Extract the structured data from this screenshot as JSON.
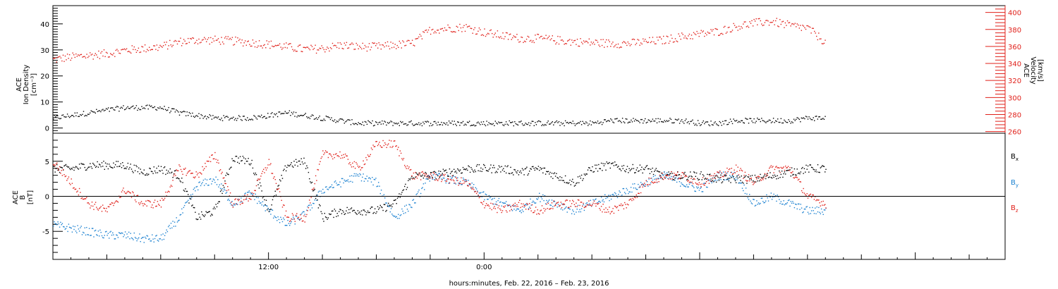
{
  "chart_data": [
    {
      "type": "scatter",
      "panel": "top",
      "ylabel_left": [
        "ACE",
        "Ion Density",
        "[cm⁻³]"
      ],
      "ylabel_right": [
        "ACE",
        "Velocity",
        "[km/s]"
      ],
      "ylim_left": [
        -2,
        47
      ],
      "ylim_right": [
        258,
        408
      ],
      "left_ticks": [
        0,
        10,
        20,
        30,
        40
      ],
      "right_ticks": [
        260,
        280,
        300,
        320,
        340,
        360,
        380,
        400
      ],
      "colors": {
        "density": "#000000",
        "velocity": "#e0201a"
      },
      "series": [
        {
          "name": "Ion Density",
          "axis": "left",
          "x_hours": [
            0,
            1,
            2,
            3,
            4,
            5,
            6,
            7,
            8,
            9,
            10,
            11,
            12,
            13,
            14,
            15,
            16,
            17,
            18,
            19,
            20,
            21,
            22,
            23,
            24,
            25,
            26,
            27,
            28,
            29,
            30,
            31,
            32,
            33,
            34,
            35,
            36,
            37,
            38,
            39,
            40,
            41,
            42,
            43
          ],
          "values": [
            4,
            5,
            6,
            7,
            8,
            8,
            8,
            6,
            5,
            4,
            4,
            4,
            5,
            6,
            5,
            4,
            3,
            2,
            2,
            2,
            2,
            2,
            2,
            2,
            2,
            2,
            2,
            2,
            2,
            2,
            2,
            3,
            3,
            3,
            3,
            3,
            2,
            2,
            3,
            3,
            3,
            3,
            4,
            4
          ]
        },
        {
          "name": "Velocity",
          "axis": "right",
          "x_hours": [
            0,
            1,
            2,
            3,
            4,
            5,
            6,
            7,
            8,
            9,
            10,
            11,
            12,
            13,
            14,
            15,
            16,
            17,
            18,
            19,
            20,
            21,
            22,
            23,
            24,
            25,
            26,
            27,
            28,
            29,
            30,
            31,
            32,
            33,
            34,
            35,
            36,
            37,
            38,
            39,
            40,
            41,
            42,
            43
          ],
          "values": [
            345,
            348,
            350,
            352,
            356,
            358,
            360,
            366,
            368,
            368,
            367,
            365,
            363,
            360,
            357,
            358,
            362,
            360,
            360,
            362,
            364,
            380,
            382,
            383,
            377,
            373,
            370,
            370,
            368,
            366,
            365,
            364,
            364,
            366,
            368,
            372,
            375,
            378,
            384,
            388,
            390,
            385,
            382,
            365
          ]
        }
      ]
    },
    {
      "type": "scatter",
      "panel": "bottom",
      "ylabel": [
        "ACE",
        "B",
        "[nT]"
      ],
      "ylim": [
        -9,
        9
      ],
      "yticks": [
        -5,
        0,
        5
      ],
      "xlabel": "hours:minutes, Feb. 22, 2016 – Feb. 23, 2016",
      "x_tick_labels": [
        {
          "label": "12:00",
          "hour": 12
        },
        {
          "label": "0:00",
          "hour": 24
        }
      ],
      "x_range_hours": [
        0,
        53
      ],
      "data_end_hour": 43,
      "legend": [
        {
          "text": "B",
          "sub": "x",
          "color": "#000000"
        },
        {
          "text": "B",
          "sub": "y",
          "color": "#1a80d0"
        },
        {
          "text": "B",
          "sub": "z",
          "color": "#e0201a"
        }
      ],
      "series": [
        {
          "name": "Bx",
          "x_hours": [
            0,
            1,
            2,
            3,
            4,
            5,
            6,
            7,
            8,
            9,
            10,
            11,
            12,
            13,
            14,
            15,
            16,
            17,
            18,
            19,
            20,
            21,
            22,
            23,
            24,
            25,
            26,
            27,
            28,
            29,
            30,
            31,
            32,
            33,
            34,
            35,
            36,
            37,
            38,
            39,
            40,
            41,
            42,
            43
          ],
          "values": [
            4,
            4,
            4.5,
            4.5,
            4.5,
            3.5,
            4,
            3,
            -3,
            -2,
            5.5,
            5,
            -2,
            4.5,
            5,
            -3,
            -2,
            -2,
            -2,
            -1,
            3,
            3,
            3.5,
            4,
            4,
            4,
            3.5,
            4,
            3,
            2,
            4,
            4.5,
            4,
            4,
            3,
            3,
            3,
            2.5,
            2.5,
            2.5,
            3,
            3.5,
            4,
            4
          ]
        },
        {
          "name": "By",
          "x_hours": [
            0,
            1,
            2,
            3,
            4,
            5,
            6,
            7,
            8,
            9,
            10,
            11,
            12,
            13,
            14,
            15,
            16,
            17,
            18,
            19,
            20,
            21,
            22,
            23,
            24,
            25,
            26,
            27,
            28,
            29,
            30,
            31,
            32,
            33,
            34,
            35,
            36,
            37,
            38,
            39,
            40,
            41,
            42,
            43
          ],
          "values": [
            -4,
            -4.5,
            -5,
            -5.5,
            -5.5,
            -6,
            -6,
            -3,
            1.5,
            2.5,
            -1,
            0.5,
            -2,
            -4,
            -2.5,
            1,
            2,
            3,
            2,
            -3,
            -1,
            3,
            2.5,
            2,
            0,
            -1,
            -2,
            0,
            -1,
            -2,
            -1,
            0,
            1,
            2,
            3,
            2,
            1,
            3,
            3,
            -1,
            0,
            -1,
            -2,
            -2
          ]
        },
        {
          "name": "Bz",
          "x_hours": [
            0,
            1,
            2,
            3,
            4,
            5,
            6,
            7,
            8,
            9,
            10,
            11,
            12,
            13,
            14,
            15,
            16,
            17,
            18,
            19,
            20,
            21,
            22,
            23,
            24,
            25,
            26,
            27,
            28,
            29,
            30,
            31,
            32,
            33,
            34,
            35,
            36,
            37,
            38,
            39,
            40,
            41,
            42,
            43
          ],
          "values": [
            5,
            2,
            -1,
            -2,
            1,
            -1,
            -1,
            4,
            3,
            6,
            -1,
            0,
            5,
            -3,
            -3,
            6,
            6,
            4,
            7.5,
            7.5,
            3,
            3,
            2.5,
            2,
            -1,
            -2,
            -1,
            -2,
            -1,
            -1,
            -1,
            -2,
            -1,
            2,
            3,
            3,
            2,
            3,
            4,
            2,
            4,
            4,
            0,
            -1
          ]
        }
      ]
    }
  ]
}
